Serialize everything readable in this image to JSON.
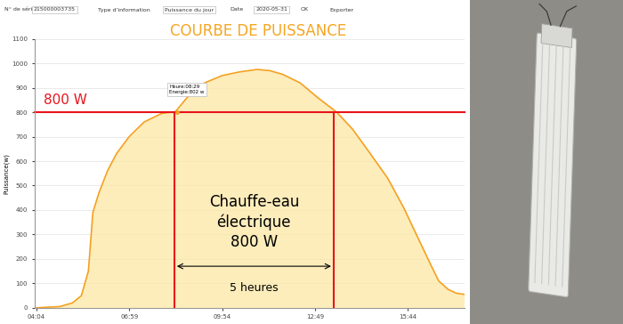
{
  "chart_data": {
    "type": "line",
    "title": "COURBE DE PUISSANCE",
    "y_label": "Puissance(w)",
    "x": [
      4.07,
      4.8,
      5.2,
      5.48,
      5.7,
      5.84,
      6.03,
      6.3,
      6.58,
      6.98,
      7.45,
      8.0,
      8.43,
      8.8,
      9.35,
      9.9,
      10.45,
      11.0,
      11.4,
      11.8,
      12.35,
      12.9,
      13.5,
      14.0,
      14.5,
      15.1,
      15.6,
      16.0,
      16.4,
      16.7,
      17.0,
      17.25,
      17.5
    ],
    "values": [
      0,
      5,
      20,
      50,
      150,
      390,
      470,
      560,
      630,
      700,
      760,
      795,
      802,
      860,
      920,
      950,
      965,
      975,
      970,
      955,
      920,
      860,
      800,
      730,
      640,
      530,
      410,
      300,
      190,
      110,
      75,
      60,
      55
    ],
    "color": "#f5a020",
    "xlim": [
      4.0,
      17.5
    ],
    "xticks": [
      {
        "value": 4.067,
        "label": "04:04"
      },
      {
        "value": 6.983,
        "label": "06:59"
      },
      {
        "value": 9.9,
        "label": "09:54"
      },
      {
        "value": 12.817,
        "label": "12:49"
      },
      {
        "value": 15.733,
        "label": "15:44"
      }
    ],
    "ylim": [
      0,
      1100
    ],
    "yticks": [
      0,
      100,
      200,
      300,
      400,
      500,
      600,
      700,
      800,
      900,
      1000,
      1100
    ],
    "grid": "y",
    "threshold": 800,
    "threshold_label": "800 W",
    "window": [
      8.4,
      13.4
    ],
    "window_label": "5 heures",
    "annotation": "Chauffe-eau\nélectrique\n800 W",
    "tooltip": {
      "x": 8.48,
      "value": 802,
      "label": "Heure:08:29\nEnergie:802 w"
    }
  },
  "toolbar": [
    "N° de série",
    "215000003735",
    "Type d'information",
    "Puissance du jour",
    "Date",
    "2020-05-31",
    "OK",
    "Exporter"
  ]
}
